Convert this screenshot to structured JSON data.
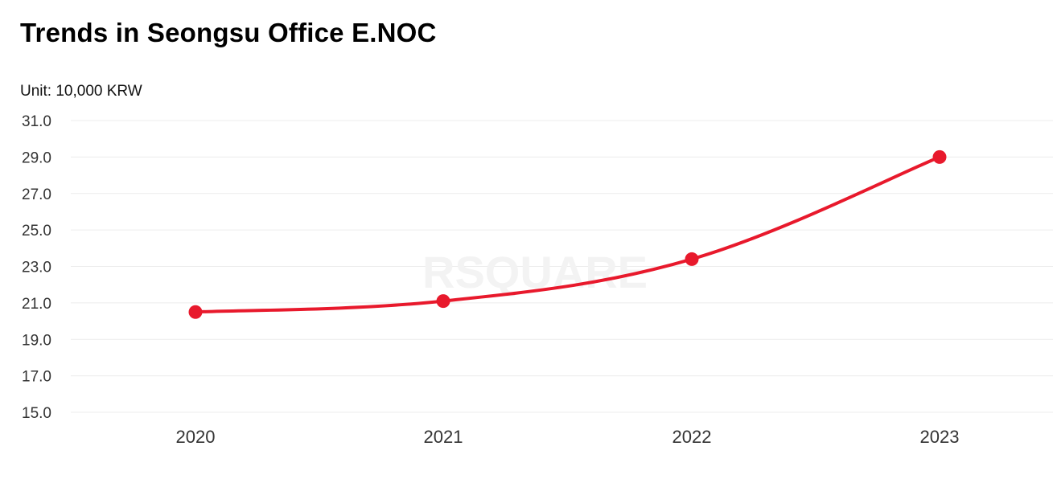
{
  "chart_data": {
    "type": "line",
    "title": "Trends in Seongsu Office E.NOC",
    "unit_label": "Unit: 10,000 KRW",
    "categories": [
      "2020",
      "2021",
      "2022",
      "2023"
    ],
    "series": [
      {
        "values": [
          20.5,
          21.1,
          23.4,
          29.0
        ],
        "color": "#e8192c"
      }
    ],
    "yticks": [
      "31.0",
      "29.0",
      "27.0",
      "25.0",
      "23.0",
      "21.0",
      "19.0",
      "17.0",
      "15.0"
    ],
    "ylim": [
      15.0,
      31.0
    ],
    "grid": true,
    "legend": "none",
    "watermark": "RSQUARE"
  }
}
